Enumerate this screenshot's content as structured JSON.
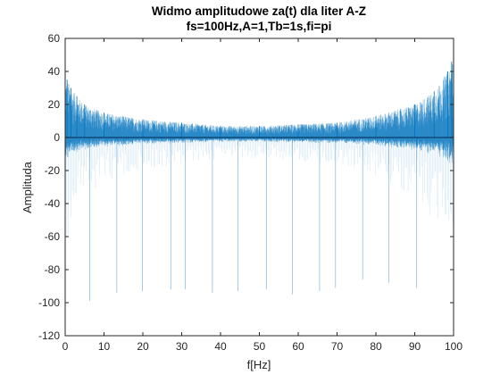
{
  "chart_data": {
    "type": "line",
    "title": "Widmo amplitudowe za(t) dla liter A-Z",
    "subtitle": "fs=100Hz,A=1,Tb=1s,fi=pi",
    "xlabel": "f[Hz]",
    "ylabel": "Amplituda",
    "xlim": [
      0,
      100
    ],
    "ylim": [
      -120,
      60
    ],
    "xticks": [
      "0",
      "10",
      "20",
      "30",
      "40",
      "50",
      "60",
      "70",
      "80",
      "90",
      "100"
    ],
    "yticks": [
      "60",
      "40",
      "20",
      "0",
      "-20",
      "-40",
      "-60",
      "-80",
      "-100",
      "-120"
    ],
    "grid": false,
    "series_color": "#0072BD",
    "series": [
      {
        "values_description_points": [
          {
            "x": 0.5,
            "y": 35
          },
          {
            "x": 1.5,
            "y": 30
          },
          {
            "x": 3,
            "y": 25
          },
          {
            "x": 5,
            "y": 20
          },
          {
            "x": 10,
            "y": 15
          },
          {
            "x": 20,
            "y": 11
          },
          {
            "x": 30,
            "y": 9
          },
          {
            "x": 40,
            "y": 7
          },
          {
            "x": 50,
            "y": 7
          },
          {
            "x": 60,
            "y": 8
          },
          {
            "x": 70,
            "y": 9
          },
          {
            "x": 80,
            "y": 13
          },
          {
            "x": 90,
            "y": 20
          },
          {
            "x": 95,
            "y": 28
          },
          {
            "x": 98.5,
            "y": 40
          },
          {
            "x": 99.5,
            "y": 46
          }
        ],
        "negative_spikes": [
          {
            "x": 6.3,
            "y": -99
          },
          {
            "x": 13.3,
            "y": -94
          },
          {
            "x": 19.9,
            "y": -93
          },
          {
            "x": 27.2,
            "y": -92
          },
          {
            "x": 30.9,
            "y": -92
          },
          {
            "x": 37.9,
            "y": -94
          },
          {
            "x": 44.5,
            "y": -93
          },
          {
            "x": 51.8,
            "y": -92
          },
          {
            "x": 58.5,
            "y": -95
          },
          {
            "x": 65.5,
            "y": -93
          },
          {
            "x": 69.6,
            "y": -91
          },
          {
            "x": 76.6,
            "y": -86
          },
          {
            "x": 83.3,
            "y": -88
          },
          {
            "x": 90.5,
            "y": -91
          }
        ]
      }
    ]
  }
}
